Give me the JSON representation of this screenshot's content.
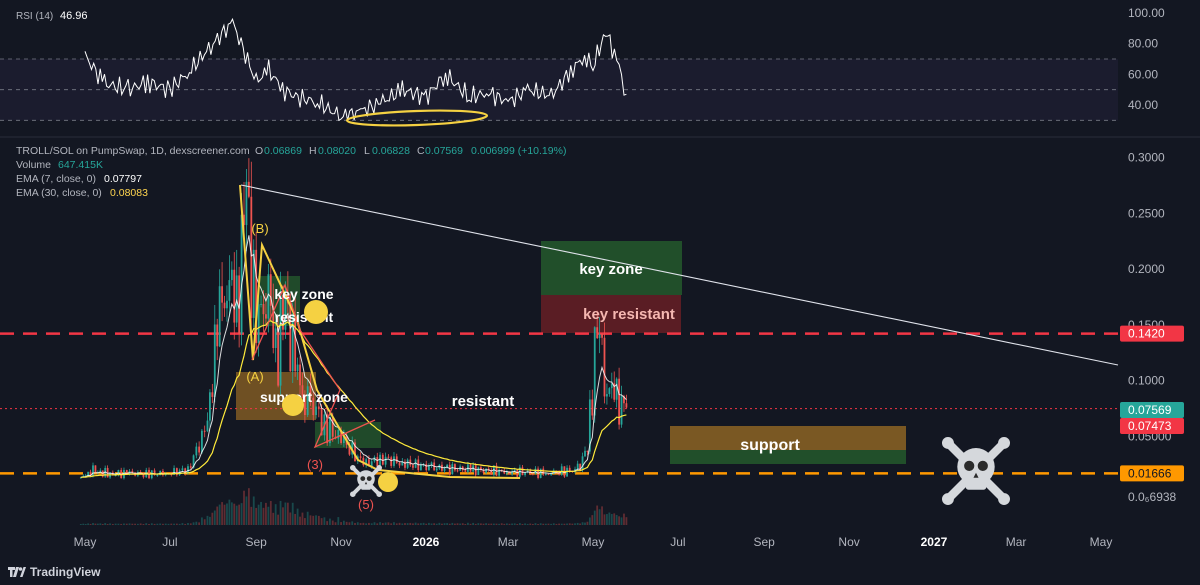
{
  "rsi": {
    "label": "RSI (14)",
    "value": "46.96",
    "ticks": [
      "100.00",
      "80.00",
      "60.00",
      "40.00"
    ]
  },
  "header": {
    "pair": "TROLL/SOL on PumpSwap, 1D, dexscreener.com",
    "o_label": "O",
    "o_value": "0.06869",
    "h_label": "H",
    "h_value": "0.08020",
    "l_label": "L",
    "l_value": "0.06828",
    "c_label": "C",
    "c_value": "0.07569",
    "change": "0.006999 (+10.19%)",
    "volume_label": "Volume",
    "volume_value": "647.415K",
    "ema7_label": "EMA (7, close, 0)",
    "ema7_value": "0.07797",
    "ema30_label": "EMA (30, close, 0)",
    "ema30_value": "0.08083"
  },
  "price_axis": {
    "ticks": [
      "0.3000",
      "0.2500",
      "0.2000",
      "0.1500",
      "0.1000",
      "0.05000",
      "0.0₆6938"
    ],
    "badges": [
      {
        "text": "0.1420",
        "color": "#f23645"
      },
      {
        "text": "0.07569",
        "color": "#26a69a"
      },
      {
        "text": "0.07473",
        "color": "#f23645"
      },
      {
        "text": "0.01666",
        "color": "#ff9800"
      }
    ]
  },
  "time_axis": [
    "May",
    "Jul",
    "Sep",
    "Nov",
    "2026",
    "Mar",
    "May",
    "Jul",
    "Sep",
    "Nov",
    "2027",
    "Mar",
    "May"
  ],
  "annotations": {
    "key_zone": "key zone",
    "key_resistant": "key resistant",
    "key_zone_small": "key zone",
    "resistant_small": "resistant",
    "resistant": "resistant",
    "support_zone": "support zone",
    "support": "support",
    "wave_b": "(B)",
    "wave_a": "(A)",
    "wave_3": "(3)",
    "wave_5": "(5)"
  },
  "branding": {
    "name": "TradingView"
  },
  "colors": {
    "background": "#131722",
    "up": "#26a69a",
    "down": "#ef5350",
    "ema7": "#ffffff",
    "ema30": "#ffeb3b",
    "resistance_line": "#f23645",
    "support_line": "#ff9800",
    "rsi_line": "#ffffff",
    "rsi_band": "#7e57c2"
  },
  "chart_data": {
    "type": "line",
    "title": "TROLL/SOL on PumpSwap, 1D",
    "price_close_series": [
      [
        "2025-04-28",
        0.012
      ],
      [
        "2025-05-05",
        0.02
      ],
      [
        "2025-05-12",
        0.018
      ],
      [
        "2025-05-19",
        0.016
      ],
      [
        "2025-06-02",
        0.017
      ],
      [
        "2025-06-16",
        0.016
      ],
      [
        "2025-06-30",
        0.017
      ],
      [
        "2025-07-14",
        0.02
      ],
      [
        "2025-07-28",
        0.06
      ],
      [
        "2025-08-04",
        0.15
      ],
      [
        "2025-08-11",
        0.2
      ],
      [
        "2025-08-18",
        0.16
      ],
      [
        "2025-08-25",
        0.27
      ],
      [
        "2025-09-01",
        0.14
      ],
      [
        "2025-09-08",
        0.2
      ],
      [
        "2025-09-15",
        0.12
      ],
      [
        "2025-09-22",
        0.17
      ],
      [
        "2025-09-29",
        0.11
      ],
      [
        "2025-10-06",
        0.09
      ],
      [
        "2025-10-20",
        0.06
      ],
      [
        "2025-11-03",
        0.045
      ],
      [
        "2025-11-17",
        0.025
      ],
      [
        "2025-12-01",
        0.03
      ],
      [
        "2025-12-15",
        0.026
      ],
      [
        "2026-01-05",
        0.022
      ],
      [
        "2026-02-02",
        0.02
      ],
      [
        "2026-03-02",
        0.018
      ],
      [
        "2026-03-30",
        0.017
      ],
      [
        "2026-04-20",
        0.02
      ],
      [
        "2026-04-27",
        0.04
      ],
      [
        "2026-05-04",
        0.15
      ],
      [
        "2026-05-11",
        0.1
      ],
      [
        "2026-05-18",
        0.08
      ],
      [
        "2026-05-25",
        0.07569
      ]
    ],
    "horizontal_levels": [
      {
        "name": "resistance",
        "value": 0.142
      },
      {
        "name": "level",
        "value": 0.07473
      },
      {
        "name": "support",
        "value": 0.01666
      }
    ],
    "y_range": [
      0.0,
      0.31
    ],
    "rsi_range": [
      25,
      100
    ],
    "rsi_current": 46.96,
    "rsi_series": [
      [
        "2025-05-01",
        72
      ],
      [
        "2025-05-15",
        54
      ],
      [
        "2025-06-01",
        50
      ],
      [
        "2025-06-15",
        55
      ],
      [
        "2025-07-01",
        50
      ],
      [
        "2025-07-15",
        62
      ],
      [
        "2025-08-01",
        80
      ],
      [
        "2025-08-15",
        94
      ],
      [
        "2025-09-01",
        55
      ],
      [
        "2025-09-10",
        63
      ],
      [
        "2025-09-20",
        50
      ],
      [
        "2025-10-01",
        45
      ],
      [
        "2025-10-15",
        42
      ],
      [
        "2025-11-01",
        32
      ],
      [
        "2025-11-15",
        36
      ],
      [
        "2025-12-01",
        42
      ],
      [
        "2025-12-15",
        50
      ],
      [
        "2026-01-01",
        45
      ],
      [
        "2026-01-15",
        60
      ],
      [
        "2026-02-01",
        45
      ],
      [
        "2026-02-15",
        48
      ],
      [
        "2026-03-01",
        42
      ],
      [
        "2026-03-15",
        50
      ],
      [
        "2026-04-01",
        46
      ],
      [
        "2026-04-15",
        62
      ],
      [
        "2026-04-25",
        72
      ],
      [
        "2026-05-01",
        65
      ],
      [
        "2026-05-10",
        88
      ],
      [
        "2026-05-18",
        70
      ],
      [
        "2026-05-25",
        46.96
      ]
    ],
    "grid": false
  }
}
